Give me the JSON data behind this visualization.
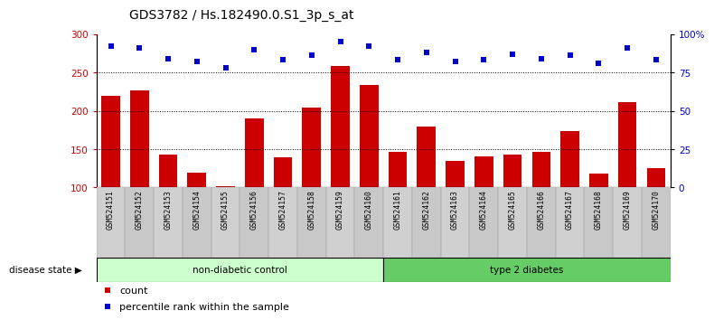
{
  "title": "GDS3782 / Hs.182490.0.S1_3p_s_at",
  "samples": [
    "GSM524151",
    "GSM524152",
    "GSM524153",
    "GSM524154",
    "GSM524155",
    "GSM524156",
    "GSM524157",
    "GSM524158",
    "GSM524159",
    "GSM524160",
    "GSM524161",
    "GSM524162",
    "GSM524163",
    "GSM524164",
    "GSM524165",
    "GSM524166",
    "GSM524167",
    "GSM524168",
    "GSM524169",
    "GSM524170"
  ],
  "counts": [
    220,
    227,
    143,
    119,
    102,
    190,
    140,
    204,
    258,
    234,
    146,
    180,
    135,
    141,
    143,
    147,
    173,
    118,
    211,
    125
  ],
  "percentile_ranks": [
    92,
    91,
    84,
    82,
    78,
    90,
    83,
    86,
    95,
    92,
    83,
    88,
    82,
    83,
    87,
    84,
    86,
    81,
    91,
    83
  ],
  "group1_label": "non-diabetic control",
  "group2_label": "type 2 diabetes",
  "group1_count": 10,
  "group2_count": 10,
  "ylim_left": [
    100,
    300
  ],
  "ylim_right": [
    0,
    100
  ],
  "yticks_left": [
    100,
    150,
    200,
    250,
    300
  ],
  "yticks_right": [
    0,
    25,
    50,
    75,
    100
  ],
  "ytick_labels_right": [
    "0",
    "25",
    "50",
    "75",
    "100%"
  ],
  "bar_color": "#cc0000",
  "dot_color": "#0000cc",
  "group1_color": "#ccffcc",
  "group2_color": "#66cc66",
  "legend_count_label": "count",
  "legend_pct_label": "percentile rank within the sample",
  "disease_state_label": "disease state"
}
